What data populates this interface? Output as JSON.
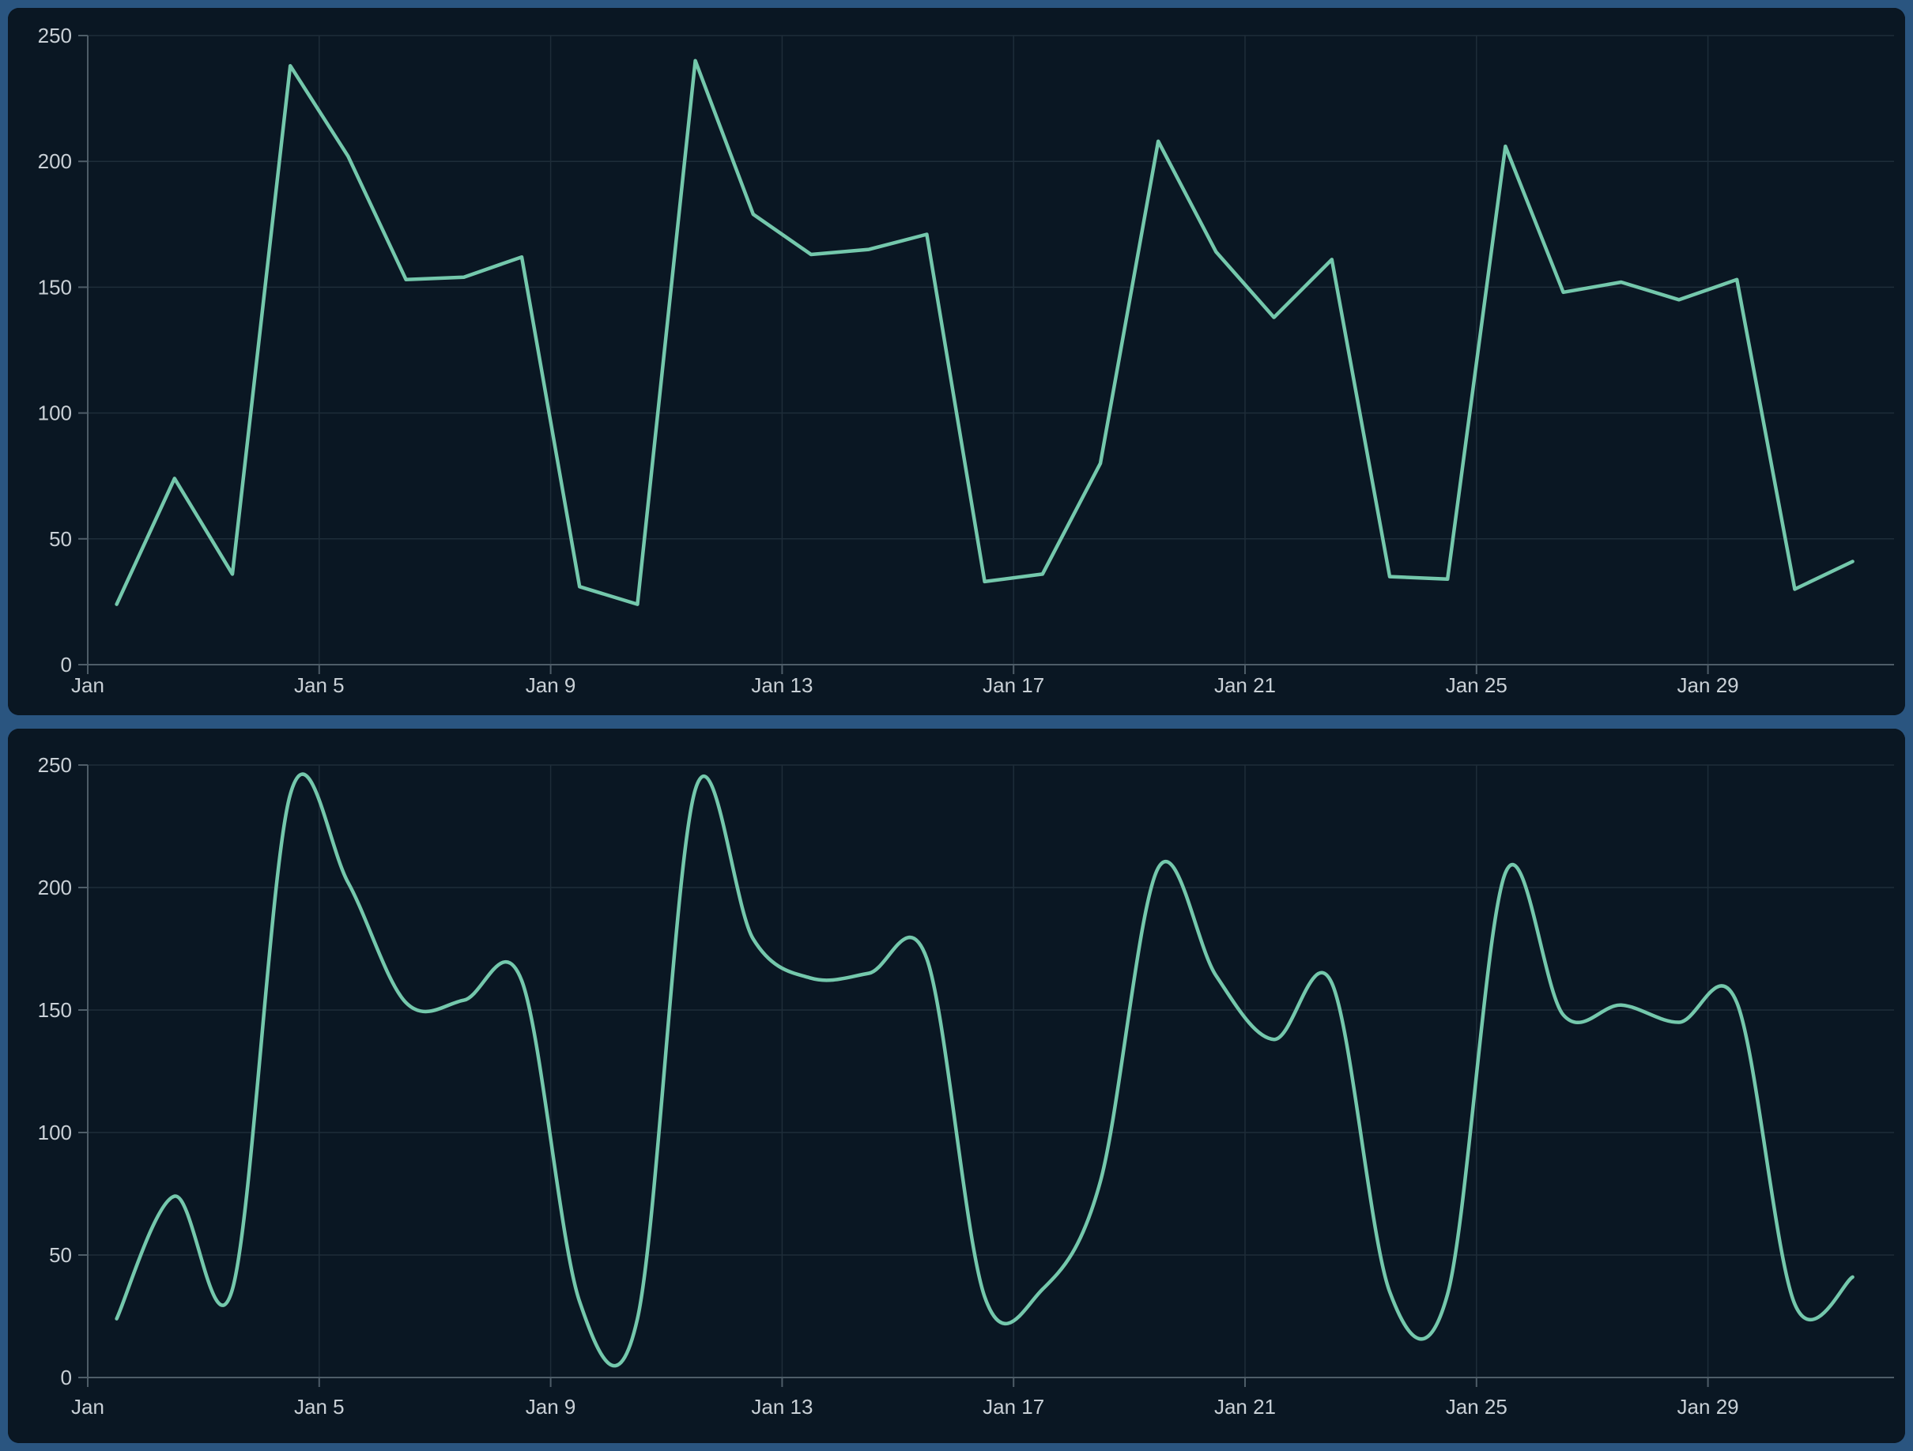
{
  "page": {
    "background_color": "#2a5580",
    "panel_background_color": "#0a1723"
  },
  "panels": [
    {
      "name": "linear-line-chart-panel"
    },
    {
      "name": "smooth-line-chart-panel"
    }
  ],
  "chart_data": [
    {
      "type": "line",
      "smooth": false,
      "title": "",
      "xlabel": "",
      "ylabel": "",
      "legend": "none",
      "grid": true,
      "categories": [
        "Jan 1",
        "Jan 2",
        "Jan 3",
        "Jan 4",
        "Jan 5",
        "Jan 6",
        "Jan 7",
        "Jan 8",
        "Jan 9",
        "Jan 10",
        "Jan 11",
        "Jan 12",
        "Jan 13",
        "Jan 14",
        "Jan 15",
        "Jan 16",
        "Jan 17",
        "Jan 18",
        "Jan 19",
        "Jan 20",
        "Jan 21",
        "Jan 22",
        "Jan 23",
        "Jan 24",
        "Jan 25",
        "Jan 26",
        "Jan 27",
        "Jan 28",
        "Jan 29",
        "Jan 30",
        "Jan 31"
      ],
      "values": [
        24,
        74,
        36,
        238,
        202,
        153,
        154,
        162,
        31,
        24,
        240,
        179,
        163,
        165,
        171,
        33,
        36,
        80,
        208,
        164,
        138,
        161,
        35,
        34,
        206,
        148,
        152,
        145,
        153,
        30,
        41
      ],
      "x_tick_labels": [
        "Jan",
        "Jan 5",
        "Jan 9",
        "Jan 13",
        "Jan 17",
        "Jan 21",
        "Jan 25",
        "Jan 29"
      ],
      "x_tick_indices": [
        0,
        4,
        8,
        12,
        16,
        20,
        24,
        28
      ],
      "y_ticks": [
        0,
        50,
        100,
        150,
        200,
        250
      ],
      "ylim": [
        0,
        250
      ],
      "line_color": "#74c8ac",
      "grid_color": "#1e2d39",
      "axis_color": "#4e5d68",
      "label_color": "#c9d0d6"
    },
    {
      "type": "line",
      "smooth": true,
      "title": "",
      "xlabel": "",
      "ylabel": "",
      "legend": "none",
      "grid": true,
      "categories": [
        "Jan 1",
        "Jan 2",
        "Jan 3",
        "Jan 4",
        "Jan 5",
        "Jan 6",
        "Jan 7",
        "Jan 8",
        "Jan 9",
        "Jan 10",
        "Jan 11",
        "Jan 12",
        "Jan 13",
        "Jan 14",
        "Jan 15",
        "Jan 16",
        "Jan 17",
        "Jan 18",
        "Jan 19",
        "Jan 20",
        "Jan 21",
        "Jan 22",
        "Jan 23",
        "Jan 24",
        "Jan 25",
        "Jan 26",
        "Jan 27",
        "Jan 28",
        "Jan 29",
        "Jan 30",
        "Jan 31"
      ],
      "values": [
        24,
        74,
        36,
        238,
        202,
        153,
        154,
        162,
        31,
        24,
        240,
        179,
        163,
        165,
        171,
        33,
        36,
        80,
        208,
        164,
        138,
        161,
        35,
        34,
        206,
        148,
        152,
        145,
        153,
        30,
        41
      ],
      "x_tick_labels": [
        "Jan",
        "Jan 5",
        "Jan 9",
        "Jan 13",
        "Jan 17",
        "Jan 21",
        "Jan 25",
        "Jan 29"
      ],
      "x_tick_indices": [
        0,
        4,
        8,
        12,
        16,
        20,
        24,
        28
      ],
      "y_ticks": [
        0,
        50,
        100,
        150,
        200,
        250
      ],
      "ylim": [
        0,
        250
      ],
      "line_color": "#74c8ac",
      "grid_color": "#1e2d39",
      "axis_color": "#4e5d68",
      "label_color": "#c9d0d6"
    }
  ]
}
